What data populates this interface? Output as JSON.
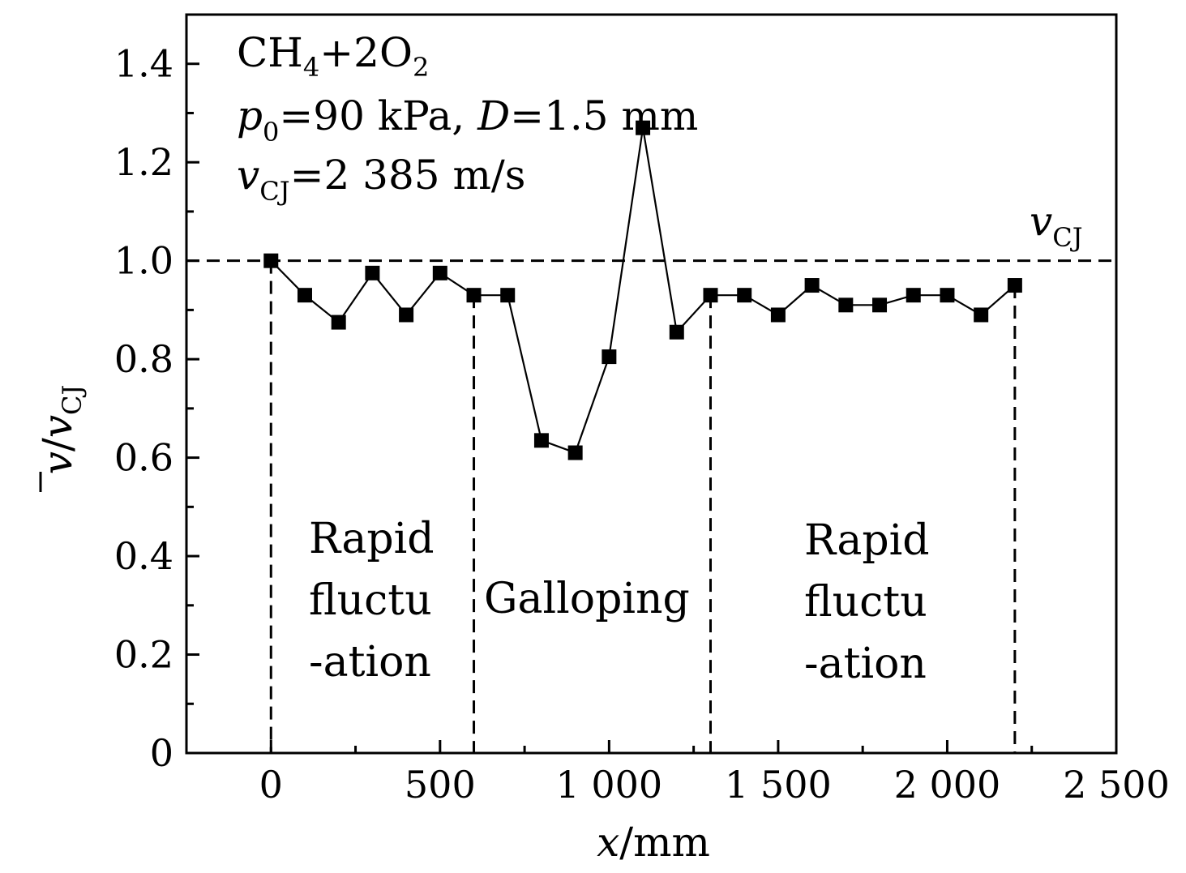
{
  "chart_data": {
    "type": "line",
    "x": [
      0,
      100,
      200,
      300,
      400,
      500,
      600,
      700,
      800,
      900,
      1000,
      1100,
      1200,
      1300,
      1400,
      1500,
      1600,
      1700,
      1800,
      1900,
      2000,
      2100,
      2200
    ],
    "series": [
      {
        "values": [
          1.0,
          0.93,
          0.875,
          0.975,
          0.89,
          0.975,
          0.93,
          0.93,
          0.635,
          0.61,
          0.805,
          1.27,
          0.855,
          0.93,
          0.93,
          0.89,
          0.95,
          0.91,
          0.91,
          0.93,
          0.93,
          0.89,
          0.95
        ],
        "marker": "square",
        "color": "#000000"
      }
    ],
    "xlim": [
      -250,
      2500
    ],
    "ylim": [
      0,
      1.5
    ],
    "xticks": [
      0,
      500,
      1000,
      1500,
      2000,
      2500
    ],
    "xtick_labels": [
      "0",
      "500",
      "1 000",
      "1 500",
      "2 000",
      "2 500"
    ],
    "yticks": [
      0,
      0.2,
      0.4,
      0.6,
      0.8,
      1.0,
      1.2,
      1.4
    ],
    "ytick_labels": [
      "0",
      "0.2",
      "0.4",
      "0.6",
      "0.8",
      "1.0",
      "1.2",
      "1.4"
    ],
    "xlabel": {
      "var": "x",
      "unit": "/mm"
    },
    "ylabel": {
      "num": "v",
      "sep": "/",
      "den": "v",
      "den_sub": "CJ"
    },
    "reference_line": {
      "y": 1.0,
      "style": "dashed",
      "label": "v",
      "label_sub": "CJ"
    },
    "region_boundaries": [
      0,
      600,
      1300,
      2200
    ],
    "regions": [
      {
        "lines": [
          "Rapid",
          "fluctu",
          "-ation"
        ]
      },
      {
        "lines": [
          "Galloping"
        ]
      },
      {
        "lines": [
          "Rapid",
          "fluctu",
          "-ation"
        ]
      }
    ],
    "annotations": [
      {
        "parts": [
          "CH",
          "4",
          "+2O",
          "2"
        ]
      },
      {
        "parts": [
          "p",
          "0",
          "=90 kPa, ",
          "D",
          "=1.5 mm"
        ]
      },
      {
        "parts": [
          "v",
          "CJ",
          "=2 385 m/s"
        ]
      }
    ],
    "grid": false,
    "legend": "none"
  }
}
